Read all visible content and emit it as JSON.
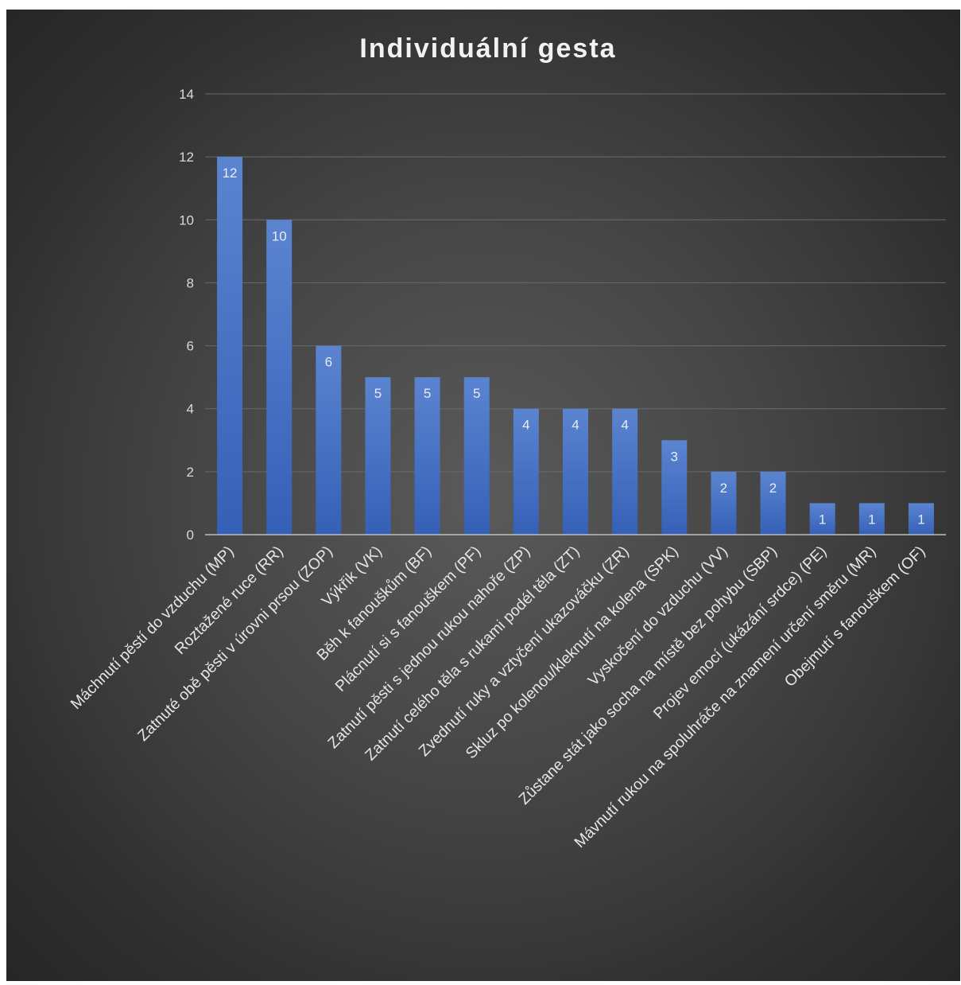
{
  "chart_data": {
    "type": "bar",
    "title": "Individuální gesta",
    "xlabel": "",
    "ylabel": "",
    "ylim": [
      0,
      14
    ],
    "yticks": [
      0,
      2,
      4,
      6,
      8,
      10,
      12,
      14
    ],
    "grid": true,
    "legend": "none",
    "bar_color": "#4472c4",
    "categories": [
      "Máchnutí pěstí do vzduchu (MP)",
      "Roztažené ruce (RR)",
      "Zatnuté obě pěsti v úrovni prsou (ZOP)",
      "Výkřik (VK)",
      "Běh k fanouškům (BF)",
      "Plácnutí si s fanouškem (PF)",
      "Zatnutí pěsti s jednou rukou nahoře (ZP)",
      "Zatnutí celého těla s rukami podél těla (ZT)",
      "Zvednutí ruky a vztyčení ukazováčku (ZR)",
      "Skluz po kolenou/kleknutí na kolena (SPK)",
      "Vyskočení do vzduchu (VV)",
      "Zůstane stát jako socha na místě bez pohybu (SBP)",
      "Projev emocí (ukázání srdce) (PE)",
      "Mávnutí rukou na spoluhráče na znamení určení směru (MR)",
      "Obejmutí s fanouškem (OF)"
    ],
    "values": [
      12,
      10,
      6,
      5,
      5,
      5,
      4,
      4,
      4,
      3,
      2,
      2,
      1,
      1,
      1
    ]
  }
}
